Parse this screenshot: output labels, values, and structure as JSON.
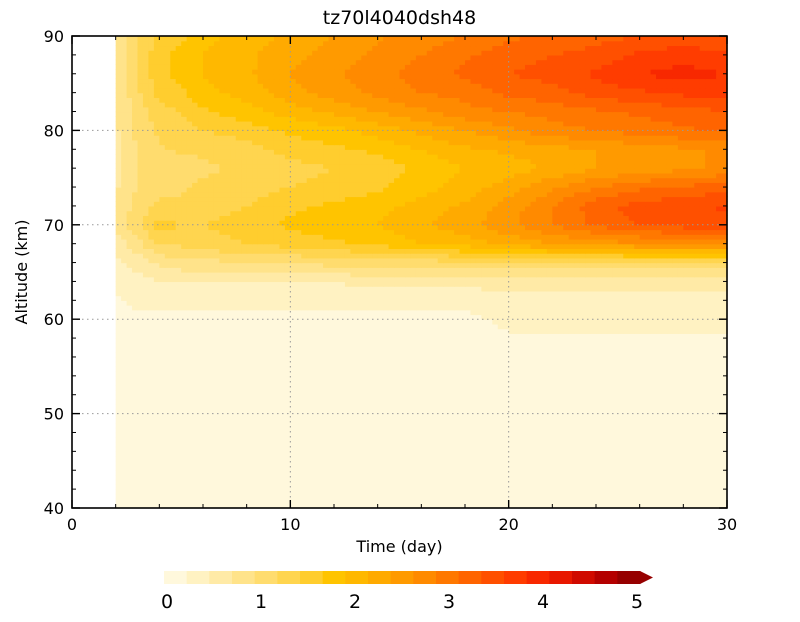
{
  "chart_data": {
    "type": "heatmap",
    "title": "tz70l4040dsh48",
    "xlabel": "Time (day)",
    "ylabel": "Altitude (km)",
    "xlim": [
      0,
      30
    ],
    "ylim": [
      40,
      90
    ],
    "xticks": [
      "0",
      "10",
      "20",
      "30"
    ],
    "yticks": [
      "40",
      "50",
      "60",
      "70",
      "80",
      "90"
    ],
    "grid": true,
    "x": [
      2,
      3,
      4,
      5,
      6,
      8,
      10,
      12,
      14,
      16,
      18,
      20,
      22,
      24,
      26,
      28,
      30
    ],
    "y": [
      40,
      55,
      60,
      62,
      64,
      66,
      68,
      70,
      72,
      74,
      76,
      78,
      80,
      82,
      84,
      86,
      88,
      90
    ],
    "z": [
      [
        0.1,
        0.1,
        0.1,
        0.1,
        0.1,
        0.1,
        0.1,
        0.1,
        0.1,
        0.1,
        0.1,
        0.1,
        0.1,
        0.1,
        0.1,
        0.1,
        0.1
      ],
      [
        0.1,
        0.1,
        0.1,
        0.1,
        0.1,
        0.1,
        0.1,
        0.1,
        0.1,
        0.1,
        0.1,
        0.1,
        0.1,
        0.1,
        0.1,
        0.1,
        0.1
      ],
      [
        0.2,
        0.2,
        0.2,
        0.2,
        0.2,
        0.2,
        0.2,
        0.2,
        0.2,
        0.2,
        0.2,
        0.3,
        0.3,
        0.3,
        0.3,
        0.3,
        0.3
      ],
      [
        0.2,
        0.3,
        0.3,
        0.3,
        0.3,
        0.3,
        0.3,
        0.3,
        0.3,
        0.3,
        0.3,
        0.4,
        0.4,
        0.4,
        0.4,
        0.4,
        0.4
      ],
      [
        0.3,
        0.4,
        0.5,
        0.5,
        0.5,
        0.5,
        0.5,
        0.5,
        0.6,
        0.6,
        0.6,
        0.6,
        0.6,
        0.6,
        0.6,
        0.6,
        0.6
      ],
      [
        0.4,
        0.6,
        0.8,
        0.9,
        0.9,
        1.0,
        1.0,
        1.1,
        1.1,
        1.1,
        1.2,
        1.2,
        1.2,
        1.2,
        1.2,
        1.2,
        1.2
      ],
      [
        0.6,
        0.9,
        1.3,
        1.3,
        1.4,
        1.5,
        1.6,
        1.7,
        1.8,
        2.0,
        2.1,
        2.3,
        2.5,
        2.6,
        2.7,
        2.8,
        2.8
      ],
      [
        0.8,
        1.2,
        1.6,
        1.5,
        1.5,
        1.6,
        1.8,
        1.9,
        2.0,
        2.2,
        2.4,
        2.7,
        3.0,
        3.3,
        3.5,
        3.6,
        3.6
      ],
      [
        0.8,
        1.1,
        1.3,
        1.3,
        1.4,
        1.5,
        1.7,
        1.8,
        1.9,
        2.1,
        2.3,
        2.6,
        3.0,
        3.4,
        3.6,
        3.7,
        3.8
      ],
      [
        0.7,
        1.0,
        1.2,
        1.2,
        1.3,
        1.4,
        1.5,
        1.6,
        1.7,
        1.9,
        2.1,
        2.4,
        2.7,
        3.0,
        3.2,
        3.3,
        3.4
      ],
      [
        0.7,
        1.0,
        1.1,
        1.1,
        1.2,
        1.3,
        1.4,
        1.5,
        1.6,
        1.8,
        2.0,
        2.1,
        2.3,
        2.5,
        2.6,
        2.7,
        2.8
      ],
      [
        0.7,
        1.0,
        1.2,
        1.3,
        1.3,
        1.4,
        1.6,
        1.7,
        1.8,
        2.0,
        2.2,
        2.3,
        2.4,
        2.5,
        2.6,
        2.7,
        2.8
      ],
      [
        0.7,
        1.1,
        1.3,
        1.4,
        1.5,
        1.6,
        1.8,
        1.9,
        2.1,
        2.3,
        2.5,
        2.7,
        2.9,
        3.0,
        3.1,
        3.2,
        3.3
      ],
      [
        0.7,
        1.1,
        1.4,
        1.5,
        1.7,
        1.9,
        2.1,
        2.3,
        2.5,
        2.7,
        2.9,
        3.0,
        3.1,
        3.2,
        3.3,
        3.4,
        3.5
      ],
      [
        0.7,
        1.2,
        1.6,
        1.7,
        1.9,
        2.1,
        2.4,
        2.6,
        2.8,
        3.0,
        3.1,
        3.3,
        3.4,
        3.6,
        3.7,
        3.8,
        3.8
      ],
      [
        0.7,
        1.2,
        1.7,
        1.8,
        2.0,
        2.2,
        2.5,
        2.7,
        2.9,
        3.1,
        3.3,
        3.5,
        3.6,
        3.8,
        4.0,
        4.1,
        4.0
      ],
      [
        0.7,
        1.2,
        1.7,
        1.8,
        2.0,
        2.2,
        2.4,
        2.6,
        2.8,
        3.0,
        3.2,
        3.4,
        3.5,
        3.6,
        3.8,
        3.9,
        3.8
      ],
      [
        0.7,
        1.2,
        1.6,
        1.7,
        1.9,
        2.1,
        2.3,
        2.5,
        2.7,
        2.9,
        3.0,
        3.2,
        3.3,
        3.4,
        3.5,
        3.6,
        3.5
      ]
    ],
    "colorbar": {
      "labels": [
        "0",
        "1",
        "2",
        "3",
        "4",
        "5"
      ],
      "min": 0,
      "max": 5,
      "colors": [
        "#fff8dc",
        "#fff2c2",
        "#ffeaa6",
        "#ffe38a",
        "#ffdc6e",
        "#ffd54f",
        "#ffcd2e",
        "#ffc400",
        "#ffb800",
        "#ffaa00",
        "#ff9a00",
        "#ff8a00",
        "#ff7800",
        "#ff6400",
        "#ff5000",
        "#ff3c00",
        "#f82800",
        "#e81800",
        "#d00a00",
        "#b40000",
        "#960000"
      ]
    }
  }
}
